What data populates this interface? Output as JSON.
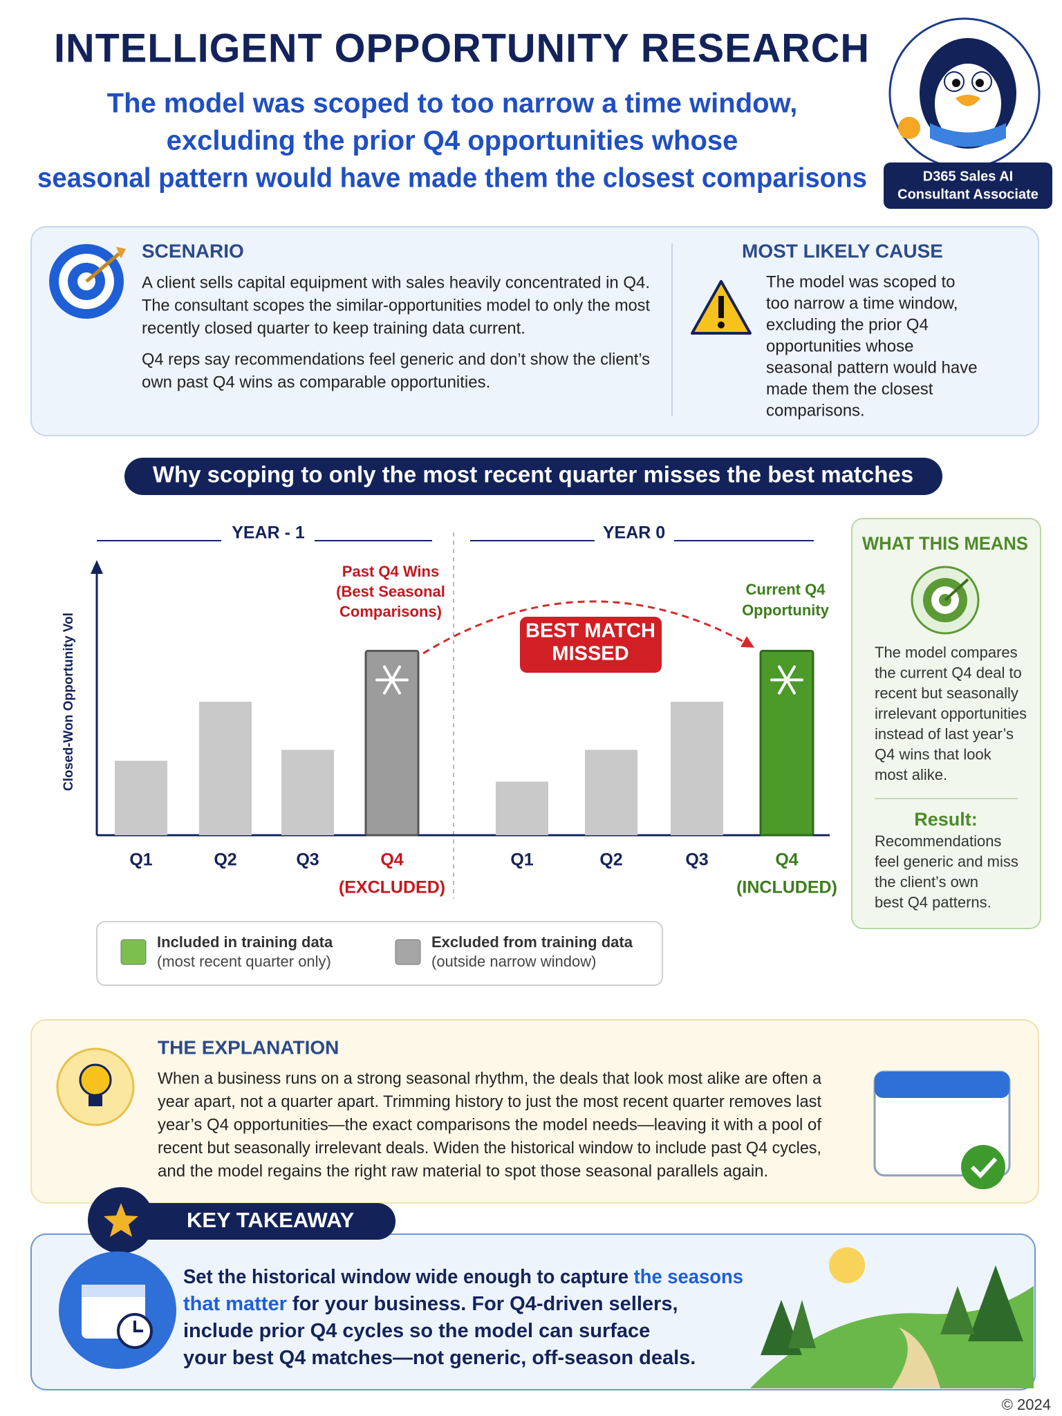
{
  "header": {
    "title": "INTELLIGENT OPPORTUNITY RESEARCH",
    "subtitle": [
      "The model was scoped to too narrow a time window,",
      "excluding the prior Q4 opportunities whose",
      "seasonal pattern would have made them the closest comparisons"
    ],
    "badge": [
      "D365 Sales AI",
      "Consultant Associate"
    ]
  },
  "scenario": {
    "heading": "SCENARIO",
    "lines": [
      "A client sells capital equipment with sales heavily concentrated in Q4.",
      "The consultant scopes the similar-opportunities model to only the most",
      "recently closed quarter to keep training data current."
    ],
    "lines2": [
      "Q4 reps say recommendations feel generic and don’t show the client’s",
      "own past Q4 wins as comparable opportunities."
    ]
  },
  "cause": {
    "heading": "MOST LIKELY CAUSE",
    "lines": [
      "The model was scoped to",
      "too narrow a time window,",
      "excluding the prior Q4",
      "opportunities whose",
      "seasonal pattern would have",
      "made them the closest",
      "comparisons."
    ]
  },
  "banner": "Why scoping to only the most recent quarter misses the best matches",
  "chart_data": {
    "type": "bar",
    "y_label": "Closed-Won Opportunity Vol",
    "groups": [
      "YEAR - 1",
      "YEAR 0"
    ],
    "categories": [
      "Q1",
      "Q2",
      "Q3",
      "Q4",
      "Q1",
      "Q2",
      "Q3",
      "Q4"
    ],
    "category_notes": [
      null,
      null,
      null,
      "(EXCLUDED)",
      null,
      null,
      null,
      "(INCLUDED)"
    ],
    "values": [
      82,
      147,
      94,
      203,
      59,
      94,
      147,
      203
    ],
    "colors": [
      "#c9c9c9",
      "#c9c9c9",
      "#c9c9c9",
      "#9c9c9c",
      "#c9c9c9",
      "#c9c9c9",
      "#c9c9c9",
      "#4c9a2a"
    ],
    "ylim": [
      0,
      300
    ],
    "annotations": {
      "past": [
        "Past Q4 Wins",
        "(Best Seasonal",
        "Comparisons)"
      ],
      "current": [
        "Current Q4",
        "Opportunity"
      ],
      "missed": [
        "BEST MATCH",
        "MISSED"
      ]
    },
    "legend": [
      {
        "name": "Included in training data",
        "detail": "(most recent quarter only)",
        "color": "#7cbf4e"
      },
      {
        "name": "Excluded from training data",
        "detail": "(outside narrow window)",
        "color": "#a6a6a6"
      }
    ]
  },
  "meaning": {
    "heading": "WHAT THIS MEANS",
    "lines": [
      "The model compares",
      "the current Q4 deal to",
      "recent but seasonally",
      "irrelevant opportunities",
      "instead of last year’s",
      "Q4 wins that look",
      "most alike."
    ],
    "result_heading": "Result:",
    "result_lines": [
      "Recommendations",
      "feel generic and miss",
      "the client’s own",
      "best Q4 patterns."
    ]
  },
  "explanation": {
    "heading": "THE EXPLANATION",
    "lines": [
      "When a business runs on a strong seasonal rhythm, the deals that look most alike are often a",
      "year apart, not a quarter apart. Trimming history to just the most recent quarter removes last",
      "year’s Q4 opportunities—the exact comparisons the model needs—leaving it with a pool of",
      "recent but seasonally irrelevant deals. Widen the historical window to include past Q4 cycles,",
      "and the model regains the right raw material to spot those seasonal parallels again."
    ]
  },
  "takeaway": {
    "heading": "KEY TAKEAWAY",
    "lines": [
      [
        "Set the historical window wide enough to capture ",
        "the seasons"
      ],
      [
        "that matter",
        " for your business. For Q4-driven sellers,"
      ],
      [
        "include prior Q4 cycles so the model can surface"
      ],
      [
        "your best Q4 matches—not generic, off-season deals."
      ]
    ]
  },
  "footer": "© 2024"
}
